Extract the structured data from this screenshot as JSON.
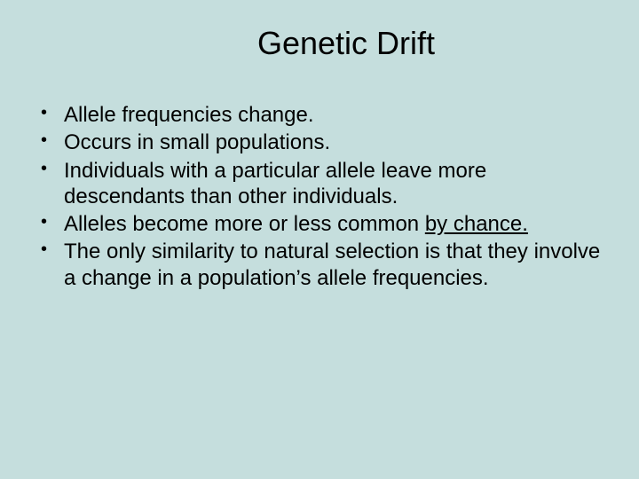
{
  "background_color": "#c5dedd",
  "text_color": "#000000",
  "title": {
    "text": "Genetic Drift",
    "fontsize": 36,
    "align": "center"
  },
  "bullets": [
    {
      "text": "Allele frequencies change."
    },
    {
      "text": "Occurs in small populations."
    },
    {
      "text": "Individuals with a particular allele leave more descendants than other individuals."
    },
    {
      "prefix": "Alleles become more or less common ",
      "underlined": "by chance."
    },
    {
      "text": "The only similarity to natural selection is that they involve a change in a population’s allele frequencies."
    }
  ],
  "body_fontsize": 24,
  "font_family": "Arial"
}
